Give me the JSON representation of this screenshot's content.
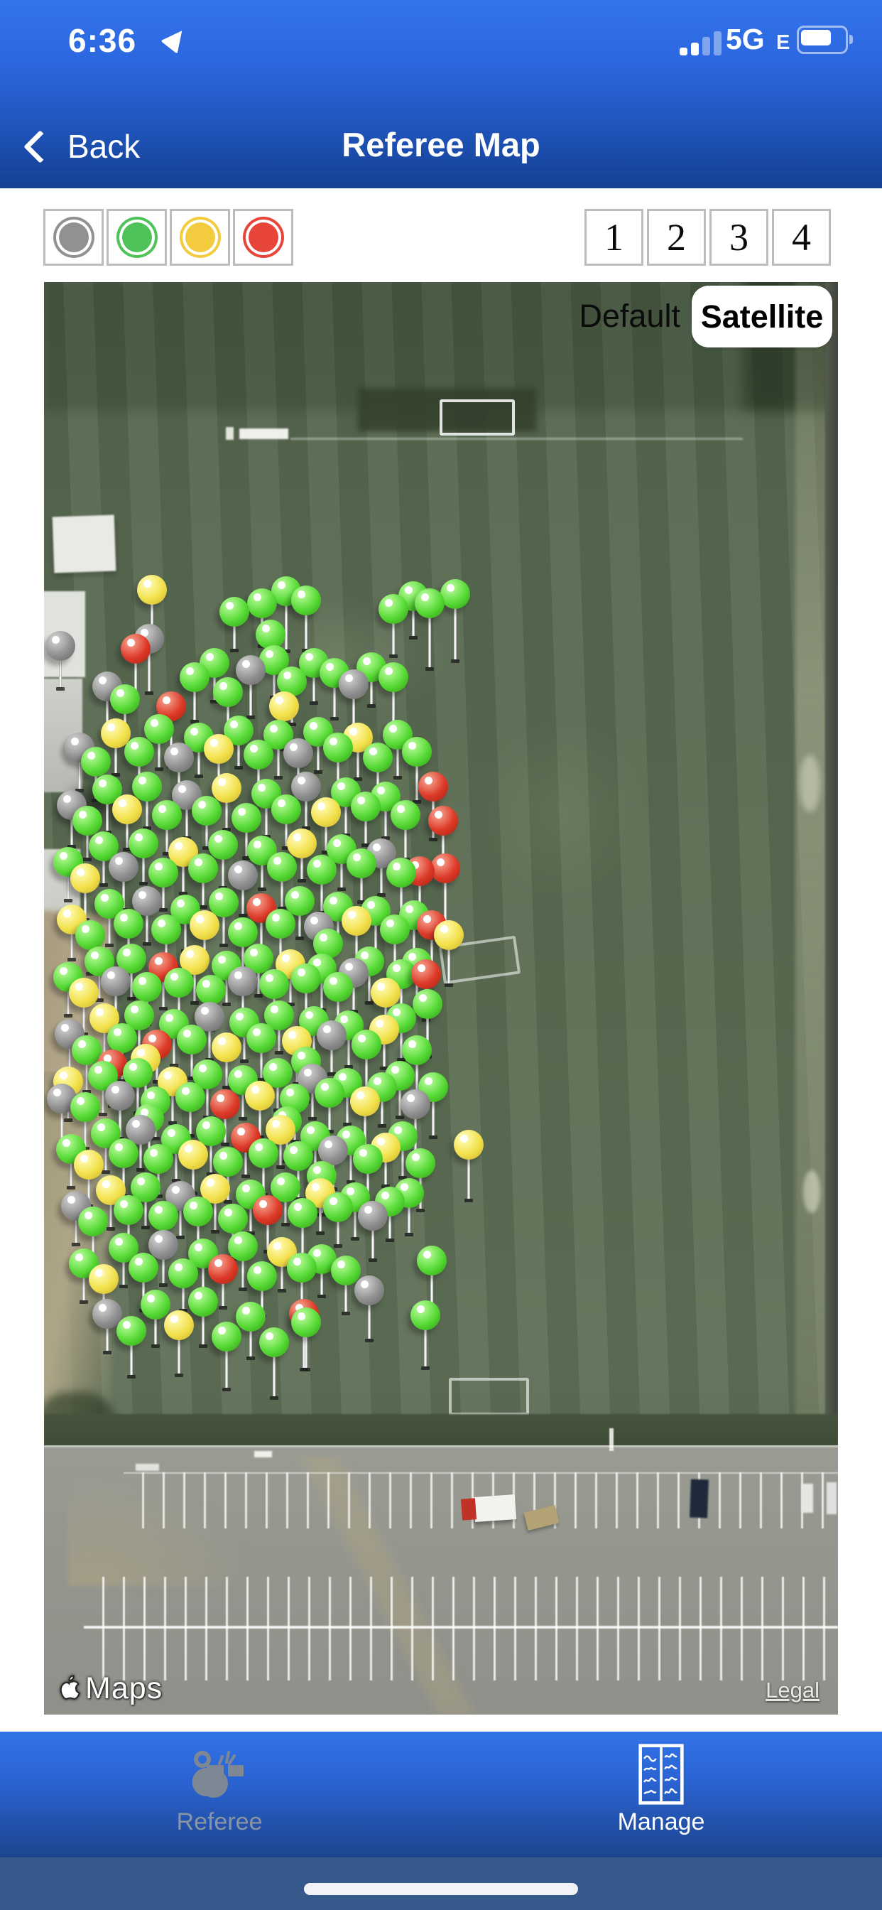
{
  "status_bar": {
    "time": "6:36",
    "carrier_tech": "5G",
    "carrier_sub": "E",
    "signal_bars_active": 2,
    "signal_bars_total": 4,
    "battery_fill_ratio": 0.78
  },
  "nav": {
    "back_label": "Back",
    "title": "Referee Map"
  },
  "filters": {
    "colors": [
      {
        "name": "gray",
        "hex": "#919191"
      },
      {
        "name": "green",
        "hex": "#4fc35a"
      },
      {
        "name": "yellow",
        "hex": "#f2cb3e"
      },
      {
        "name": "red",
        "hex": "#e8453a"
      }
    ]
  },
  "pager": {
    "pages": [
      "1",
      "2",
      "3",
      "4"
    ]
  },
  "map": {
    "mode_options": {
      "default_label": "Default",
      "satellite_label": "Satellite",
      "selected": "Satellite"
    },
    "attribution_brand": "Maps",
    "legal_label": "Legal"
  },
  "tab_bar": {
    "items": [
      {
        "label": "Referee",
        "icon": "whistle-icon",
        "active": false
      },
      {
        "label": "Manage",
        "icon": "manage-grid-icon",
        "active": true
      }
    ]
  },
  "pin_colors": {
    "g": {
      "light": "#a2f483",
      "base": "#57da36",
      "dark": "#2f9e12"
    },
    "y": {
      "light": "#fdf6a0",
      "base": "#f2e14c",
      "dark": "#cdb32a"
    },
    "r": {
      "light": "#f08a77",
      "base": "#dd3a28",
      "dark": "#a81f10"
    },
    "e": {
      "light": "#c2c2c2",
      "base": "#8f8f8f",
      "dark": "#636363"
    }
  },
  "pins": [
    [
      13.6,
      21.5,
      "y",
      64
    ],
    [
      24,
      23,
      "g",
      40
    ],
    [
      27.5,
      22.4,
      "g",
      46
    ],
    [
      30.5,
      21.6,
      "g",
      70
    ],
    [
      33,
      22.2,
      "g",
      56
    ],
    [
      28.5,
      24.6,
      "g",
      38
    ],
    [
      44,
      22.8,
      "g",
      52
    ],
    [
      46.5,
      21.9,
      "g",
      44
    ],
    [
      48.6,
      22.4,
      "g",
      78
    ],
    [
      51.8,
      21.8,
      "g",
      80
    ],
    [
      11.5,
      25.6,
      "r",
      58
    ],
    [
      13.2,
      24.9,
      "e",
      62
    ],
    [
      2.1,
      25.4,
      "e",
      46
    ],
    [
      8,
      28.2,
      "e",
      50
    ],
    [
      10.2,
      29.1,
      "g",
      44
    ],
    [
      16,
      29.6,
      "r",
      70
    ],
    [
      19,
      27.6,
      "g",
      48
    ],
    [
      21.5,
      26.6,
      "g",
      40
    ],
    [
      23.2,
      28.6,
      "g",
      44
    ],
    [
      26,
      27.1,
      "e",
      52
    ],
    [
      29,
      26.4,
      "g",
      38
    ],
    [
      31.2,
      27.9,
      "g",
      46
    ],
    [
      34,
      26.6,
      "g",
      42
    ],
    [
      36.6,
      27.3,
      "g",
      50
    ],
    [
      39,
      28.1,
      "e",
      44
    ],
    [
      41.2,
      26.9,
      "g",
      40
    ],
    [
      44,
      27.6,
      "g",
      58
    ],
    [
      30.2,
      29.6,
      "y",
      46
    ],
    [
      4.5,
      32.5,
      "e",
      46
    ],
    [
      6.5,
      33.5,
      "g",
      40
    ],
    [
      9,
      31.5,
      "y",
      44
    ],
    [
      12,
      32.8,
      "g",
      50
    ],
    [
      14.5,
      31.2,
      "g",
      42
    ],
    [
      17,
      33.2,
      "e",
      46
    ],
    [
      19.5,
      31.8,
      "g",
      40
    ],
    [
      22,
      32.6,
      "y",
      52
    ],
    [
      24.5,
      31.3,
      "g",
      38
    ],
    [
      27,
      33,
      "g",
      44
    ],
    [
      29.5,
      31.6,
      "g",
      46
    ],
    [
      32,
      32.9,
      "e",
      40
    ],
    [
      34.5,
      31.4,
      "g",
      42
    ],
    [
      37,
      32.5,
      "g",
      50
    ],
    [
      39.5,
      31.8,
      "y",
      44
    ],
    [
      42,
      33.2,
      "g",
      40
    ],
    [
      44.5,
      31.6,
      "g",
      46
    ],
    [
      47,
      32.8,
      "g",
      56
    ],
    [
      3.5,
      36.5,
      "e",
      44
    ],
    [
      5.5,
      37.6,
      "g",
      40
    ],
    [
      8,
      35.4,
      "g",
      46
    ],
    [
      10.5,
      36.8,
      "y",
      42
    ],
    [
      13,
      35.2,
      "g",
      44
    ],
    [
      15.5,
      37.2,
      "g",
      40
    ],
    [
      18,
      35.8,
      "e",
      46
    ],
    [
      20.5,
      36.9,
      "g",
      38
    ],
    [
      23,
      35.3,
      "y",
      44
    ],
    [
      25.5,
      37.4,
      "g",
      42
    ],
    [
      28,
      35.7,
      "g",
      46
    ],
    [
      30.5,
      36.8,
      "g",
      40
    ],
    [
      33,
      35.2,
      "e",
      44
    ],
    [
      35.5,
      37,
      "y",
      42
    ],
    [
      38,
      35.6,
      "g",
      46
    ],
    [
      40.5,
      36.6,
      "g",
      40
    ],
    [
      43,
      35.9,
      "g",
      44
    ],
    [
      45.5,
      37.2,
      "g",
      48
    ],
    [
      49,
      35.2,
      "r",
      60
    ],
    [
      50.3,
      37.6,
      "r",
      64
    ],
    [
      3,
      40.5,
      "g",
      40
    ],
    [
      5.2,
      41.6,
      "y",
      44
    ],
    [
      7.5,
      39.4,
      "g",
      40
    ],
    [
      10,
      40.8,
      "e",
      46
    ],
    [
      12.5,
      39.2,
      "g",
      42
    ],
    [
      15,
      41.2,
      "g",
      38
    ],
    [
      17.5,
      39.8,
      "y",
      44
    ],
    [
      20,
      40.9,
      "g",
      40
    ],
    [
      22.5,
      39.3,
      "g",
      46
    ],
    [
      25,
      41.4,
      "e",
      42
    ],
    [
      27.5,
      39.7,
      "g",
      40
    ],
    [
      30,
      40.8,
      "g",
      44
    ],
    [
      32.5,
      39.2,
      "y",
      38
    ],
    [
      35,
      41,
      "g",
      46
    ],
    [
      37.5,
      39.6,
      "g",
      42
    ],
    [
      40,
      40.6,
      "g",
      40
    ],
    [
      42.5,
      39.9,
      "e",
      44
    ],
    [
      45,
      41.2,
      "g",
      48
    ],
    [
      47.3,
      41.1,
      "r",
      56
    ],
    [
      50.5,
      40.9,
      "r",
      66
    ],
    [
      3.5,
      44.5,
      "y",
      42
    ],
    [
      5.8,
      45.6,
      "g",
      40
    ],
    [
      8.2,
      43.4,
      "g",
      44
    ],
    [
      10.6,
      44.8,
      "g",
      40
    ],
    [
      13,
      43.2,
      "e",
      46
    ],
    [
      15.4,
      45.2,
      "g",
      38
    ],
    [
      17.8,
      43.8,
      "g",
      44
    ],
    [
      20.2,
      44.9,
      "y",
      40
    ],
    [
      22.6,
      43.3,
      "g",
      46
    ],
    [
      25,
      45.4,
      "g",
      42
    ],
    [
      27.4,
      43.7,
      "r",
      40
    ],
    [
      29.8,
      44.8,
      "g",
      44
    ],
    [
      32.2,
      43.2,
      "g",
      38
    ],
    [
      34.6,
      45,
      "e",
      46
    ],
    [
      37,
      43.6,
      "g",
      42
    ],
    [
      39.4,
      44.6,
      "y",
      40
    ],
    [
      41.8,
      43.9,
      "g",
      44
    ],
    [
      44.2,
      45.2,
      "g",
      48
    ],
    [
      46.6,
      44.2,
      "g",
      40
    ],
    [
      48.8,
      44.9,
      "r",
      58
    ],
    [
      51,
      45.6,
      "y",
      56
    ],
    [
      35.8,
      46.2,
      "g",
      40
    ],
    [
      3,
      48.5,
      "g",
      40
    ],
    [
      5,
      49.6,
      "y",
      44
    ],
    [
      7,
      47.4,
      "g",
      40
    ],
    [
      9,
      48.8,
      "e",
      46
    ],
    [
      11,
      47.2,
      "g",
      42
    ],
    [
      13,
      49.2,
      "g",
      38
    ],
    [
      15,
      47.8,
      "r",
      44
    ],
    [
      17,
      48.9,
      "g",
      40
    ],
    [
      19,
      47.3,
      "y",
      46
    ],
    [
      21,
      49.4,
      "g",
      42
    ],
    [
      23,
      47.7,
      "g",
      40
    ],
    [
      25,
      48.8,
      "e",
      44
    ],
    [
      27,
      47.2,
      "g",
      38
    ],
    [
      29,
      49,
      "g",
      46
    ],
    [
      31,
      47.6,
      "y",
      42
    ],
    [
      33,
      48.6,
      "g",
      40
    ],
    [
      35,
      47.9,
      "g",
      44
    ],
    [
      37,
      49.2,
      "g",
      48
    ],
    [
      39,
      48.2,
      "e",
      40
    ],
    [
      41,
      47.4,
      "g",
      44
    ],
    [
      43,
      49.6,
      "y",
      52
    ],
    [
      45,
      48.3,
      "g",
      40
    ],
    [
      47,
      47.5,
      "g",
      44
    ],
    [
      48.1,
      48.3,
      "r",
      50
    ],
    [
      48.3,
      50.4,
      "g",
      60
    ],
    [
      3.2,
      52.5,
      "e",
      40
    ],
    [
      5.4,
      53.6,
      "g",
      44
    ],
    [
      7.6,
      51.4,
      "y",
      40
    ],
    [
      9.8,
      52.8,
      "g",
      46
    ],
    [
      12,
      51.2,
      "g",
      42
    ],
    [
      14.2,
      53.2,
      "r",
      38
    ],
    [
      16.4,
      51.8,
      "g",
      44
    ],
    [
      18.6,
      52.9,
      "g",
      40
    ],
    [
      20.8,
      51.3,
      "e",
      46
    ],
    [
      23,
      53.4,
      "y",
      42
    ],
    [
      25.2,
      51.7,
      "g",
      40
    ],
    [
      27.4,
      52.8,
      "g",
      44
    ],
    [
      29.6,
      51.2,
      "g",
      38
    ],
    [
      31.8,
      53,
      "y",
      46
    ],
    [
      34,
      51.6,
      "g",
      42
    ],
    [
      36.2,
      52.6,
      "e",
      40
    ],
    [
      38.4,
      51.9,
      "g",
      44
    ],
    [
      40.6,
      53.2,
      "g",
      48
    ],
    [
      42.8,
      52.2,
      "y",
      40
    ],
    [
      45,
      51.4,
      "g",
      44
    ],
    [
      47,
      53.6,
      "g",
      52
    ],
    [
      12.8,
      54.2,
      "y",
      40
    ],
    [
      33,
      54.4,
      "g",
      42
    ],
    [
      8.6,
      54.6,
      "r",
      44
    ],
    [
      2.2,
      57,
      "e",
      48
    ],
    [
      5.2,
      57.6,
      "g",
      44
    ],
    [
      7.4,
      55.4,
      "g",
      40
    ],
    [
      9.6,
      56.8,
      "e",
      46
    ],
    [
      11.8,
      55.2,
      "g",
      42
    ],
    [
      14,
      57.2,
      "g",
      38
    ],
    [
      16.2,
      55.8,
      "y",
      44
    ],
    [
      18.4,
      56.9,
      "g",
      40
    ],
    [
      20.6,
      55.3,
      "g",
      46
    ],
    [
      22.8,
      57.4,
      "r",
      42
    ],
    [
      25,
      55.7,
      "g",
      40
    ],
    [
      27.2,
      56.8,
      "y",
      44
    ],
    [
      29.4,
      55.2,
      "g",
      38
    ],
    [
      31.6,
      57,
      "g",
      46
    ],
    [
      33.8,
      55.6,
      "e",
      42
    ],
    [
      36,
      56.6,
      "g",
      40
    ],
    [
      38.2,
      55.9,
      "g",
      44
    ],
    [
      40.4,
      57.2,
      "y",
      48
    ],
    [
      42.6,
      56.2,
      "g",
      40
    ],
    [
      44.8,
      55.4,
      "g",
      44
    ],
    [
      46.8,
      57.4,
      "e",
      52
    ],
    [
      49,
      56.2,
      "g",
      56
    ],
    [
      13.2,
      58.4,
      "g",
      40
    ],
    [
      30.6,
      58.6,
      "g",
      42
    ],
    [
      3,
      55.8,
      "y",
      40
    ],
    [
      3.4,
      60.5,
      "g",
      40
    ],
    [
      5.6,
      61.6,
      "y",
      44
    ],
    [
      7.8,
      59.4,
      "g",
      40
    ],
    [
      10,
      60.8,
      "g",
      46
    ],
    [
      12.2,
      59.2,
      "e",
      42
    ],
    [
      14.4,
      61.2,
      "g",
      38
    ],
    [
      16.6,
      59.8,
      "g",
      44
    ],
    [
      18.8,
      60.9,
      "y",
      40
    ],
    [
      21,
      59.3,
      "g",
      46
    ],
    [
      23.2,
      61.4,
      "g",
      42
    ],
    [
      25.4,
      59.7,
      "r",
      40
    ],
    [
      27.6,
      60.8,
      "g",
      44
    ],
    [
      29.8,
      59.2,
      "y",
      38
    ],
    [
      32,
      61,
      "g",
      46
    ],
    [
      34.2,
      59.6,
      "g",
      42
    ],
    [
      36.4,
      60.6,
      "e",
      40
    ],
    [
      38.6,
      59.9,
      "g",
      44
    ],
    [
      40.8,
      61.2,
      "g",
      48
    ],
    [
      43,
      60.4,
      "y",
      40
    ],
    [
      45.2,
      59.6,
      "g",
      44
    ],
    [
      47.4,
      61.5,
      "g",
      52
    ],
    [
      35,
      62.4,
      "g",
      40
    ],
    [
      53.5,
      60.2,
      "y",
      64
    ],
    [
      4,
      64.5,
      "e",
      40
    ],
    [
      6.2,
      65.6,
      "g",
      44
    ],
    [
      8.4,
      63.4,
      "y",
      40
    ],
    [
      10.6,
      64.8,
      "g",
      46
    ],
    [
      12.8,
      63.2,
      "g",
      42
    ],
    [
      15,
      65.2,
      "g",
      38
    ],
    [
      17.2,
      63.8,
      "e",
      44
    ],
    [
      19.4,
      64.9,
      "g",
      40
    ],
    [
      21.6,
      63.3,
      "y",
      46
    ],
    [
      23.8,
      65.4,
      "g",
      42
    ],
    [
      26,
      63.7,
      "g",
      40
    ],
    [
      28.2,
      64.8,
      "r",
      44
    ],
    [
      30.4,
      63.2,
      "g",
      38
    ],
    [
      32.6,
      65,
      "g",
      46
    ],
    [
      34.8,
      63.6,
      "y",
      42
    ],
    [
      37,
      64.6,
      "g",
      40
    ],
    [
      39.2,
      63.9,
      "g",
      44
    ],
    [
      41.4,
      65.2,
      "e",
      48
    ],
    [
      43.6,
      64.2,
      "g",
      40
    ],
    [
      46,
      63.6,
      "g",
      44
    ],
    [
      5,
      68.5,
      "g",
      40
    ],
    [
      7.5,
      69.6,
      "y",
      44
    ],
    [
      10,
      67.4,
      "g",
      40
    ],
    [
      12.5,
      68.8,
      "g",
      46
    ],
    [
      15,
      67.2,
      "e",
      42
    ],
    [
      17.5,
      69.2,
      "g",
      38
    ],
    [
      20,
      67.8,
      "g",
      44
    ],
    [
      22.5,
      68.9,
      "r",
      40
    ],
    [
      25,
      67.3,
      "g",
      46
    ],
    [
      27.5,
      69.4,
      "g",
      42
    ],
    [
      30,
      67.7,
      "y",
      40
    ],
    [
      32.5,
      68.8,
      "g",
      44
    ],
    [
      35,
      68.2,
      "g",
      38
    ],
    [
      38,
      69,
      "g",
      46
    ],
    [
      48.8,
      68.3,
      "g",
      58
    ],
    [
      8,
      72,
      "e",
      40
    ],
    [
      11,
      73.2,
      "g",
      50
    ],
    [
      14,
      71.4,
      "g",
      44
    ],
    [
      17,
      72.8,
      "y",
      56
    ],
    [
      20,
      71.2,
      "g",
      48
    ],
    [
      23,
      73.6,
      "g",
      60
    ],
    [
      26,
      72.2,
      "g",
      44
    ],
    [
      29,
      74,
      "g",
      64
    ],
    [
      33,
      72.6,
      "g",
      52
    ],
    [
      32.7,
      72,
      "r",
      64
    ],
    [
      41,
      70.4,
      "e",
      56
    ],
    [
      48,
      72.1,
      "g",
      60
    ]
  ]
}
